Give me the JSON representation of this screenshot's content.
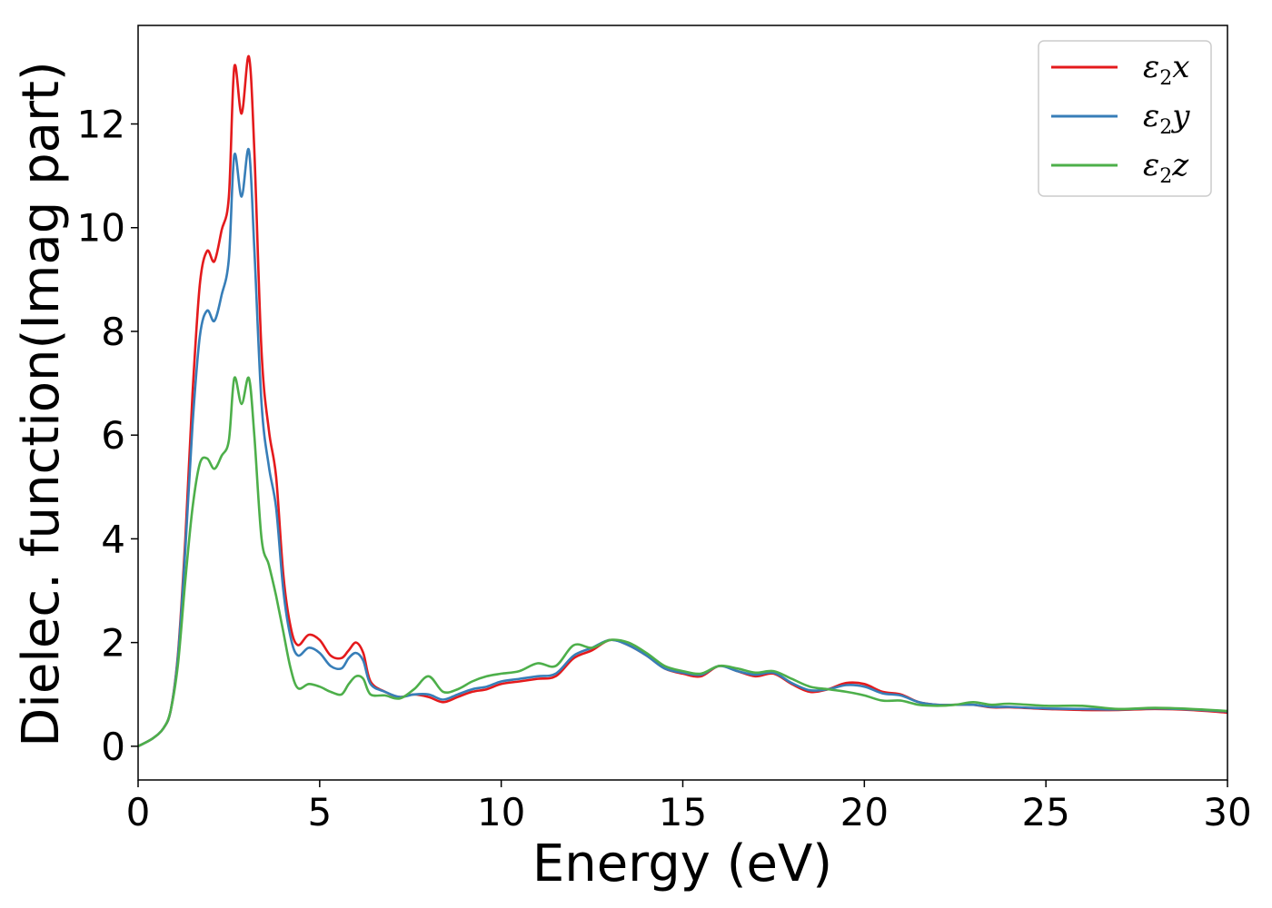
{
  "chart_data": {
    "type": "line",
    "title": "",
    "xlabel": "Energy (eV)",
    "ylabel": "Dielec. function(Imag part)",
    "xlim": [
      0,
      30
    ],
    "ylim": [
      -0.65,
      13.9
    ],
    "xticks": [
      0,
      5,
      10,
      15,
      20,
      25,
      30
    ],
    "yticks": [
      0,
      2,
      4,
      6,
      8,
      10,
      12
    ],
    "grid": false,
    "legend_position": "top-right",
    "legend_symbol": "ε",
    "series": [
      {
        "name": "ε2x",
        "legend_suffix": "x",
        "color": "#e41a1c",
        "points": [
          [
            0,
            0
          ],
          [
            0.4,
            0.15
          ],
          [
            0.7,
            0.35
          ],
          [
            0.9,
            0.7
          ],
          [
            1.1,
            1.8
          ],
          [
            1.3,
            4.0
          ],
          [
            1.5,
            6.8
          ],
          [
            1.7,
            8.9
          ],
          [
            1.9,
            9.55
          ],
          [
            2.1,
            9.35
          ],
          [
            2.3,
            9.95
          ],
          [
            2.5,
            10.6
          ],
          [
            2.65,
            13.1
          ],
          [
            2.85,
            12.2
          ],
          [
            3.05,
            13.3
          ],
          [
            3.2,
            11.5
          ],
          [
            3.4,
            7.6
          ],
          [
            3.6,
            6.1
          ],
          [
            3.8,
            5.2
          ],
          [
            4.0,
            3.3
          ],
          [
            4.2,
            2.3
          ],
          [
            4.4,
            1.95
          ],
          [
            4.7,
            2.15
          ],
          [
            5.0,
            2.05
          ],
          [
            5.3,
            1.75
          ],
          [
            5.6,
            1.7
          ],
          [
            5.8,
            1.85
          ],
          [
            6.0,
            2.0
          ],
          [
            6.2,
            1.8
          ],
          [
            6.4,
            1.25
          ],
          [
            6.8,
            1.05
          ],
          [
            7.2,
            0.95
          ],
          [
            7.6,
            1.0
          ],
          [
            8.0,
            0.95
          ],
          [
            8.4,
            0.85
          ],
          [
            8.8,
            0.95
          ],
          [
            9.2,
            1.05
          ],
          [
            9.6,
            1.1
          ],
          [
            10.0,
            1.2
          ],
          [
            10.5,
            1.25
          ],
          [
            11.0,
            1.3
          ],
          [
            11.5,
            1.35
          ],
          [
            12.0,
            1.7
          ],
          [
            12.5,
            1.85
          ],
          [
            13.0,
            2.05
          ],
          [
            13.5,
            1.95
          ],
          [
            14.0,
            1.75
          ],
          [
            14.5,
            1.5
          ],
          [
            15.0,
            1.4
          ],
          [
            15.5,
            1.35
          ],
          [
            16.0,
            1.55
          ],
          [
            16.5,
            1.45
          ],
          [
            17.0,
            1.35
          ],
          [
            17.5,
            1.4
          ],
          [
            18.0,
            1.2
          ],
          [
            18.5,
            1.05
          ],
          [
            19.0,
            1.1
          ],
          [
            19.5,
            1.22
          ],
          [
            20.0,
            1.2
          ],
          [
            20.5,
            1.05
          ],
          [
            21.0,
            1.0
          ],
          [
            21.5,
            0.85
          ],
          [
            22.0,
            0.8
          ],
          [
            22.5,
            0.8
          ],
          [
            23.0,
            0.8
          ],
          [
            23.5,
            0.75
          ],
          [
            24.0,
            0.75
          ],
          [
            25.0,
            0.72
          ],
          [
            26.0,
            0.7
          ],
          [
            27.0,
            0.7
          ],
          [
            28.0,
            0.72
          ],
          [
            29.0,
            0.7
          ],
          [
            30.0,
            0.65
          ]
        ]
      },
      {
        "name": "ε2y",
        "legend_suffix": "y",
        "color": "#377eb8",
        "points": [
          [
            0,
            0
          ],
          [
            0.4,
            0.15
          ],
          [
            0.7,
            0.35
          ],
          [
            0.9,
            0.7
          ],
          [
            1.1,
            1.75
          ],
          [
            1.3,
            3.8
          ],
          [
            1.5,
            6.2
          ],
          [
            1.7,
            7.9
          ],
          [
            1.9,
            8.4
          ],
          [
            2.1,
            8.2
          ],
          [
            2.3,
            8.7
          ],
          [
            2.5,
            9.4
          ],
          [
            2.65,
            11.4
          ],
          [
            2.85,
            10.6
          ],
          [
            3.05,
            11.5
          ],
          [
            3.2,
            9.6
          ],
          [
            3.4,
            6.6
          ],
          [
            3.6,
            5.4
          ],
          [
            3.8,
            4.6
          ],
          [
            4.0,
            3.0
          ],
          [
            4.2,
            2.1
          ],
          [
            4.4,
            1.75
          ],
          [
            4.7,
            1.9
          ],
          [
            5.0,
            1.8
          ],
          [
            5.3,
            1.55
          ],
          [
            5.6,
            1.5
          ],
          [
            5.8,
            1.7
          ],
          [
            6.0,
            1.8
          ],
          [
            6.2,
            1.65
          ],
          [
            6.4,
            1.2
          ],
          [
            6.8,
            1.05
          ],
          [
            7.2,
            0.95
          ],
          [
            7.6,
            1.0
          ],
          [
            8.0,
            1.0
          ],
          [
            8.4,
            0.9
          ],
          [
            8.8,
            1.0
          ],
          [
            9.2,
            1.1
          ],
          [
            9.6,
            1.15
          ],
          [
            10.0,
            1.25
          ],
          [
            10.5,
            1.3
          ],
          [
            11.0,
            1.35
          ],
          [
            11.5,
            1.4
          ],
          [
            12.0,
            1.75
          ],
          [
            12.5,
            1.9
          ],
          [
            13.0,
            2.05
          ],
          [
            13.5,
            1.95
          ],
          [
            14.0,
            1.75
          ],
          [
            14.5,
            1.5
          ],
          [
            15.0,
            1.42
          ],
          [
            15.5,
            1.38
          ],
          [
            16.0,
            1.55
          ],
          [
            16.5,
            1.45
          ],
          [
            17.0,
            1.38
          ],
          [
            17.5,
            1.42
          ],
          [
            18.0,
            1.22
          ],
          [
            18.5,
            1.08
          ],
          [
            19.0,
            1.1
          ],
          [
            19.5,
            1.18
          ],
          [
            20.0,
            1.15
          ],
          [
            20.5,
            1.02
          ],
          [
            21.0,
            0.98
          ],
          [
            21.5,
            0.85
          ],
          [
            22.0,
            0.8
          ],
          [
            22.5,
            0.8
          ],
          [
            23.0,
            0.8
          ],
          [
            23.5,
            0.76
          ],
          [
            24.0,
            0.76
          ],
          [
            25.0,
            0.73
          ],
          [
            26.0,
            0.72
          ],
          [
            27.0,
            0.71
          ],
          [
            28.0,
            0.73
          ],
          [
            29.0,
            0.71
          ],
          [
            30.0,
            0.67
          ]
        ]
      },
      {
        "name": "ε2z",
        "legend_suffix": "z",
        "color": "#4daf4a",
        "points": [
          [
            0,
            0
          ],
          [
            0.4,
            0.15
          ],
          [
            0.7,
            0.35
          ],
          [
            0.9,
            0.7
          ],
          [
            1.1,
            1.6
          ],
          [
            1.3,
            3.2
          ],
          [
            1.5,
            4.6
          ],
          [
            1.7,
            5.45
          ],
          [
            1.9,
            5.55
          ],
          [
            2.1,
            5.35
          ],
          [
            2.3,
            5.6
          ],
          [
            2.5,
            5.9
          ],
          [
            2.65,
            7.1
          ],
          [
            2.85,
            6.6
          ],
          [
            3.05,
            7.1
          ],
          [
            3.2,
            6.0
          ],
          [
            3.4,
            4.0
          ],
          [
            3.6,
            3.5
          ],
          [
            3.8,
            2.9
          ],
          [
            4.0,
            2.2
          ],
          [
            4.2,
            1.5
          ],
          [
            4.4,
            1.12
          ],
          [
            4.7,
            1.2
          ],
          [
            5.0,
            1.15
          ],
          [
            5.3,
            1.05
          ],
          [
            5.6,
            1.0
          ],
          [
            5.8,
            1.2
          ],
          [
            6.0,
            1.35
          ],
          [
            6.2,
            1.3
          ],
          [
            6.4,
            1.0
          ],
          [
            6.8,
            0.98
          ],
          [
            7.2,
            0.92
          ],
          [
            7.6,
            1.1
          ],
          [
            8.0,
            1.35
          ],
          [
            8.4,
            1.05
          ],
          [
            8.8,
            1.1
          ],
          [
            9.2,
            1.25
          ],
          [
            9.6,
            1.35
          ],
          [
            10.0,
            1.4
          ],
          [
            10.5,
            1.45
          ],
          [
            11.0,
            1.6
          ],
          [
            11.5,
            1.55
          ],
          [
            12.0,
            1.95
          ],
          [
            12.5,
            1.9
          ],
          [
            13.0,
            2.05
          ],
          [
            13.5,
            2.0
          ],
          [
            14.0,
            1.8
          ],
          [
            14.5,
            1.55
          ],
          [
            15.0,
            1.45
          ],
          [
            15.5,
            1.4
          ],
          [
            16.0,
            1.55
          ],
          [
            16.5,
            1.5
          ],
          [
            17.0,
            1.42
          ],
          [
            17.5,
            1.45
          ],
          [
            18.0,
            1.3
          ],
          [
            18.5,
            1.15
          ],
          [
            19.0,
            1.1
          ],
          [
            19.5,
            1.05
          ],
          [
            20.0,
            0.98
          ],
          [
            20.5,
            0.88
          ],
          [
            21.0,
            0.88
          ],
          [
            21.5,
            0.8
          ],
          [
            22.0,
            0.78
          ],
          [
            22.5,
            0.8
          ],
          [
            23.0,
            0.85
          ],
          [
            23.5,
            0.8
          ],
          [
            24.0,
            0.82
          ],
          [
            25.0,
            0.78
          ],
          [
            26.0,
            0.78
          ],
          [
            27.0,
            0.72
          ],
          [
            28.0,
            0.74
          ],
          [
            29.0,
            0.72
          ],
          [
            30.0,
            0.68
          ]
        ]
      }
    ]
  }
}
